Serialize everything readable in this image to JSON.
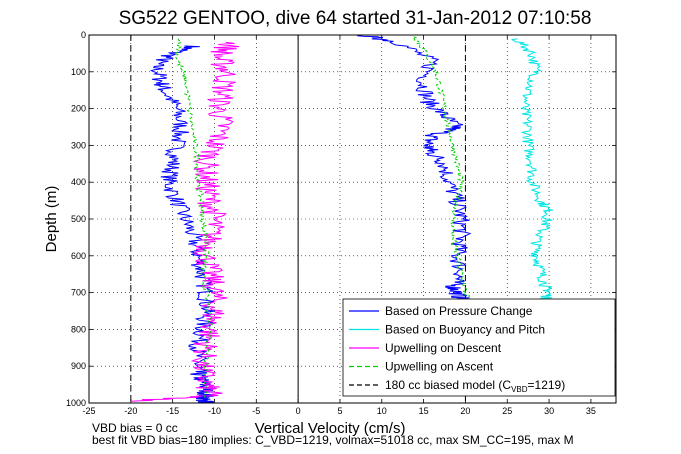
{
  "chart_data": {
    "type": "line",
    "title": "SG522 GENTOO, dive 64 started 31-Jan-2012 07:10:58",
    "xlabel": "Vertical Velocity (cm/s)",
    "ylabel": "Depth (m)",
    "xlim": [
      -25,
      38
    ],
    "ylim": [
      0,
      1000
    ],
    "y_reversed": true,
    "grid": true,
    "xticks": [
      "-25",
      "-20",
      "-15",
      "-10",
      "-5",
      "0",
      "5",
      "10",
      "15",
      "20",
      "25",
      "30",
      "35"
    ],
    "yticks": [
      "0",
      "100",
      "200",
      "300",
      "400",
      "500",
      "600",
      "700",
      "800",
      "900",
      "1000"
    ],
    "reference_lines": [
      {
        "x": -20,
        "style": "dashed"
      },
      {
        "x": 0,
        "style": "solid"
      },
      {
        "x": 20,
        "style": "dashed"
      }
    ],
    "legend_position": "bottom-right",
    "series": [
      {
        "name": "Based on Pressure Change",
        "color": "#0000ff",
        "x": [
          -12.5,
          -15,
          -17,
          -16.5,
          -16,
          -14.5,
          -14,
          -14.5,
          -15,
          -15.5,
          -14.5,
          -13.5,
          -12.5,
          -12,
          -11.5,
          -11,
          -11,
          -11.5,
          -12,
          -12,
          -12,
          -11.5,
          -11,
          -11,
          -11.5,
          -11,
          -11,
          -11
        ],
        "y": [
          30,
          50,
          80,
          120,
          150,
          200,
          250,
          300,
          350,
          400,
          450,
          500,
          550,
          600,
          650,
          700,
          750,
          800,
          850,
          900,
          920,
          940,
          960,
          980,
          990,
          995,
          997,
          999
        ]
      },
      {
        "name": "Based on Pressure Change",
        "color": "#0000ff",
        "x": [
          8,
          12,
          16,
          15,
          15.5,
          17.5,
          19,
          16,
          15.5,
          16,
          17.5,
          18,
          19,
          19.5,
          19.5,
          19,
          19.5,
          18.5,
          19,
          19.5,
          20,
          21
        ],
        "y": [
          2,
          20,
          70,
          130,
          180,
          220,
          250,
          275,
          300,
          320,
          350,
          400,
          450,
          500,
          550,
          600,
          650,
          680,
          700,
          720,
          740,
          760
        ]
      },
      {
        "name": "Based on Buoyancy and Pitch",
        "color": "#00e5e5",
        "x": [
          26,
          28,
          28.5,
          27.5,
          27,
          27.5,
          27.5,
          28,
          28,
          29,
          30,
          29.5,
          28.5,
          28.5,
          29,
          29.5,
          30,
          29.5,
          29
        ],
        "y": [
          10,
          50,
          100,
          150,
          200,
          250,
          300,
          350,
          400,
          450,
          480,
          520,
          560,
          600,
          640,
          680,
          700,
          720,
          740
        ]
      },
      {
        "name": "Upwelling on Descent",
        "color": "#ff00ff",
        "x": [
          -8,
          -9.5,
          -8.5,
          -9,
          -9.5,
          -9,
          -10,
          -11,
          -11,
          -10.5,
          -10,
          -10.5,
          -11,
          -10.5,
          -10,
          -10,
          -10.5,
          -11,
          -11.5,
          -11,
          -10.5,
          -20
        ],
        "y": [
          20,
          60,
          100,
          150,
          200,
          250,
          300,
          350,
          400,
          450,
          500,
          550,
          600,
          650,
          700,
          750,
          800,
          850,
          900,
          950,
          980,
          995
        ]
      },
      {
        "name": "Upwelling on Ascent",
        "color": "#00cc00",
        "x": [
          -14,
          -14.5,
          -13.5,
          -13,
          -12.5,
          -12,
          -12,
          -11.5,
          -11.5,
          -11,
          -11,
          -11.5,
          -11,
          -10.5,
          -11,
          -11
        ],
        "y": [
          10,
          60,
          120,
          200,
          280,
          340,
          400,
          450,
          500,
          550,
          600,
          650,
          700,
          800,
          900,
          990
        ]
      },
      {
        "name": "Upwelling on Ascent",
        "color": "#00cc00",
        "x": [
          14,
          15,
          16.5,
          17,
          17.5,
          18,
          18.5,
          19,
          19.5,
          19,
          18.5,
          18.5,
          19,
          19.5,
          20,
          21
        ],
        "y": [
          5,
          40,
          100,
          150,
          200,
          250,
          300,
          350,
          400,
          450,
          500,
          550,
          600,
          650,
          700,
          740
        ]
      }
    ],
    "legend": [
      {
        "label": "Based on Pressure Change",
        "color": "#0000ff",
        "dash": "solid"
      },
      {
        "label": "Based on Buoyancy and Pitch",
        "color": "#00e5e5",
        "dash": "solid"
      },
      {
        "label": "Upwelling on Descent",
        "color": "#ff00ff",
        "dash": "solid"
      },
      {
        "label": "Upwelling on Ascent",
        "color": "#00cc00",
        "dash": "dashed"
      },
      {
        "label": "180 cc biased model (C",
        "sub": "VBD",
        "suffix": "=1219)",
        "color": "#000000",
        "dash": "dashed"
      }
    ]
  },
  "notes": {
    "line1": "VBD bias = 0 cc",
    "line2": "best fit VBD bias=180 implies: C_VBD=1219, volmax=51018 cc, max SM_CC=195, max M"
  }
}
